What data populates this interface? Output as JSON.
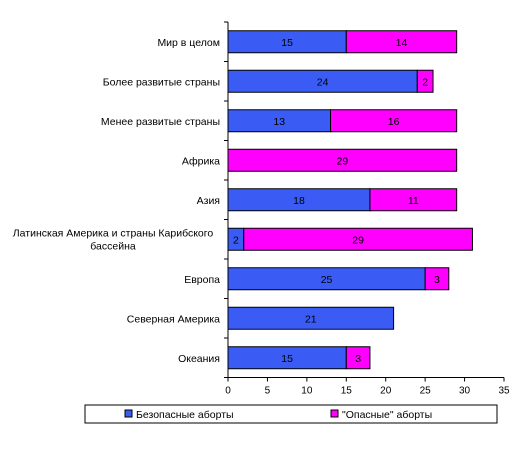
{
  "chart_data": {
    "type": "bar",
    "orientation": "horizontal",
    "stacked": true,
    "categories": [
      "Мир в целом",
      "Более развитые страны",
      "Менее развитые страны",
      "Африка",
      "Азия",
      [
        "Латинская Америка и страны Карибского",
        "бассейна"
      ],
      "Европа",
      "Северная Америка",
      "Океания"
    ],
    "series": [
      {
        "name": "Безопасные аборты",
        "color": "#3a5cf5",
        "values": [
          15,
          24,
          13,
          0,
          18,
          2,
          25,
          21,
          15
        ]
      },
      {
        "name": "\"Опасные\" аборты",
        "color": "#ff00ff",
        "values": [
          14,
          2,
          16,
          29,
          11,
          29,
          3,
          0,
          3
        ]
      }
    ],
    "xlim": [
      0,
      35
    ],
    "xticks": [
      0,
      5,
      10,
      15,
      20,
      25,
      30,
      35
    ],
    "grid": false,
    "legend_position": "bottom"
  }
}
